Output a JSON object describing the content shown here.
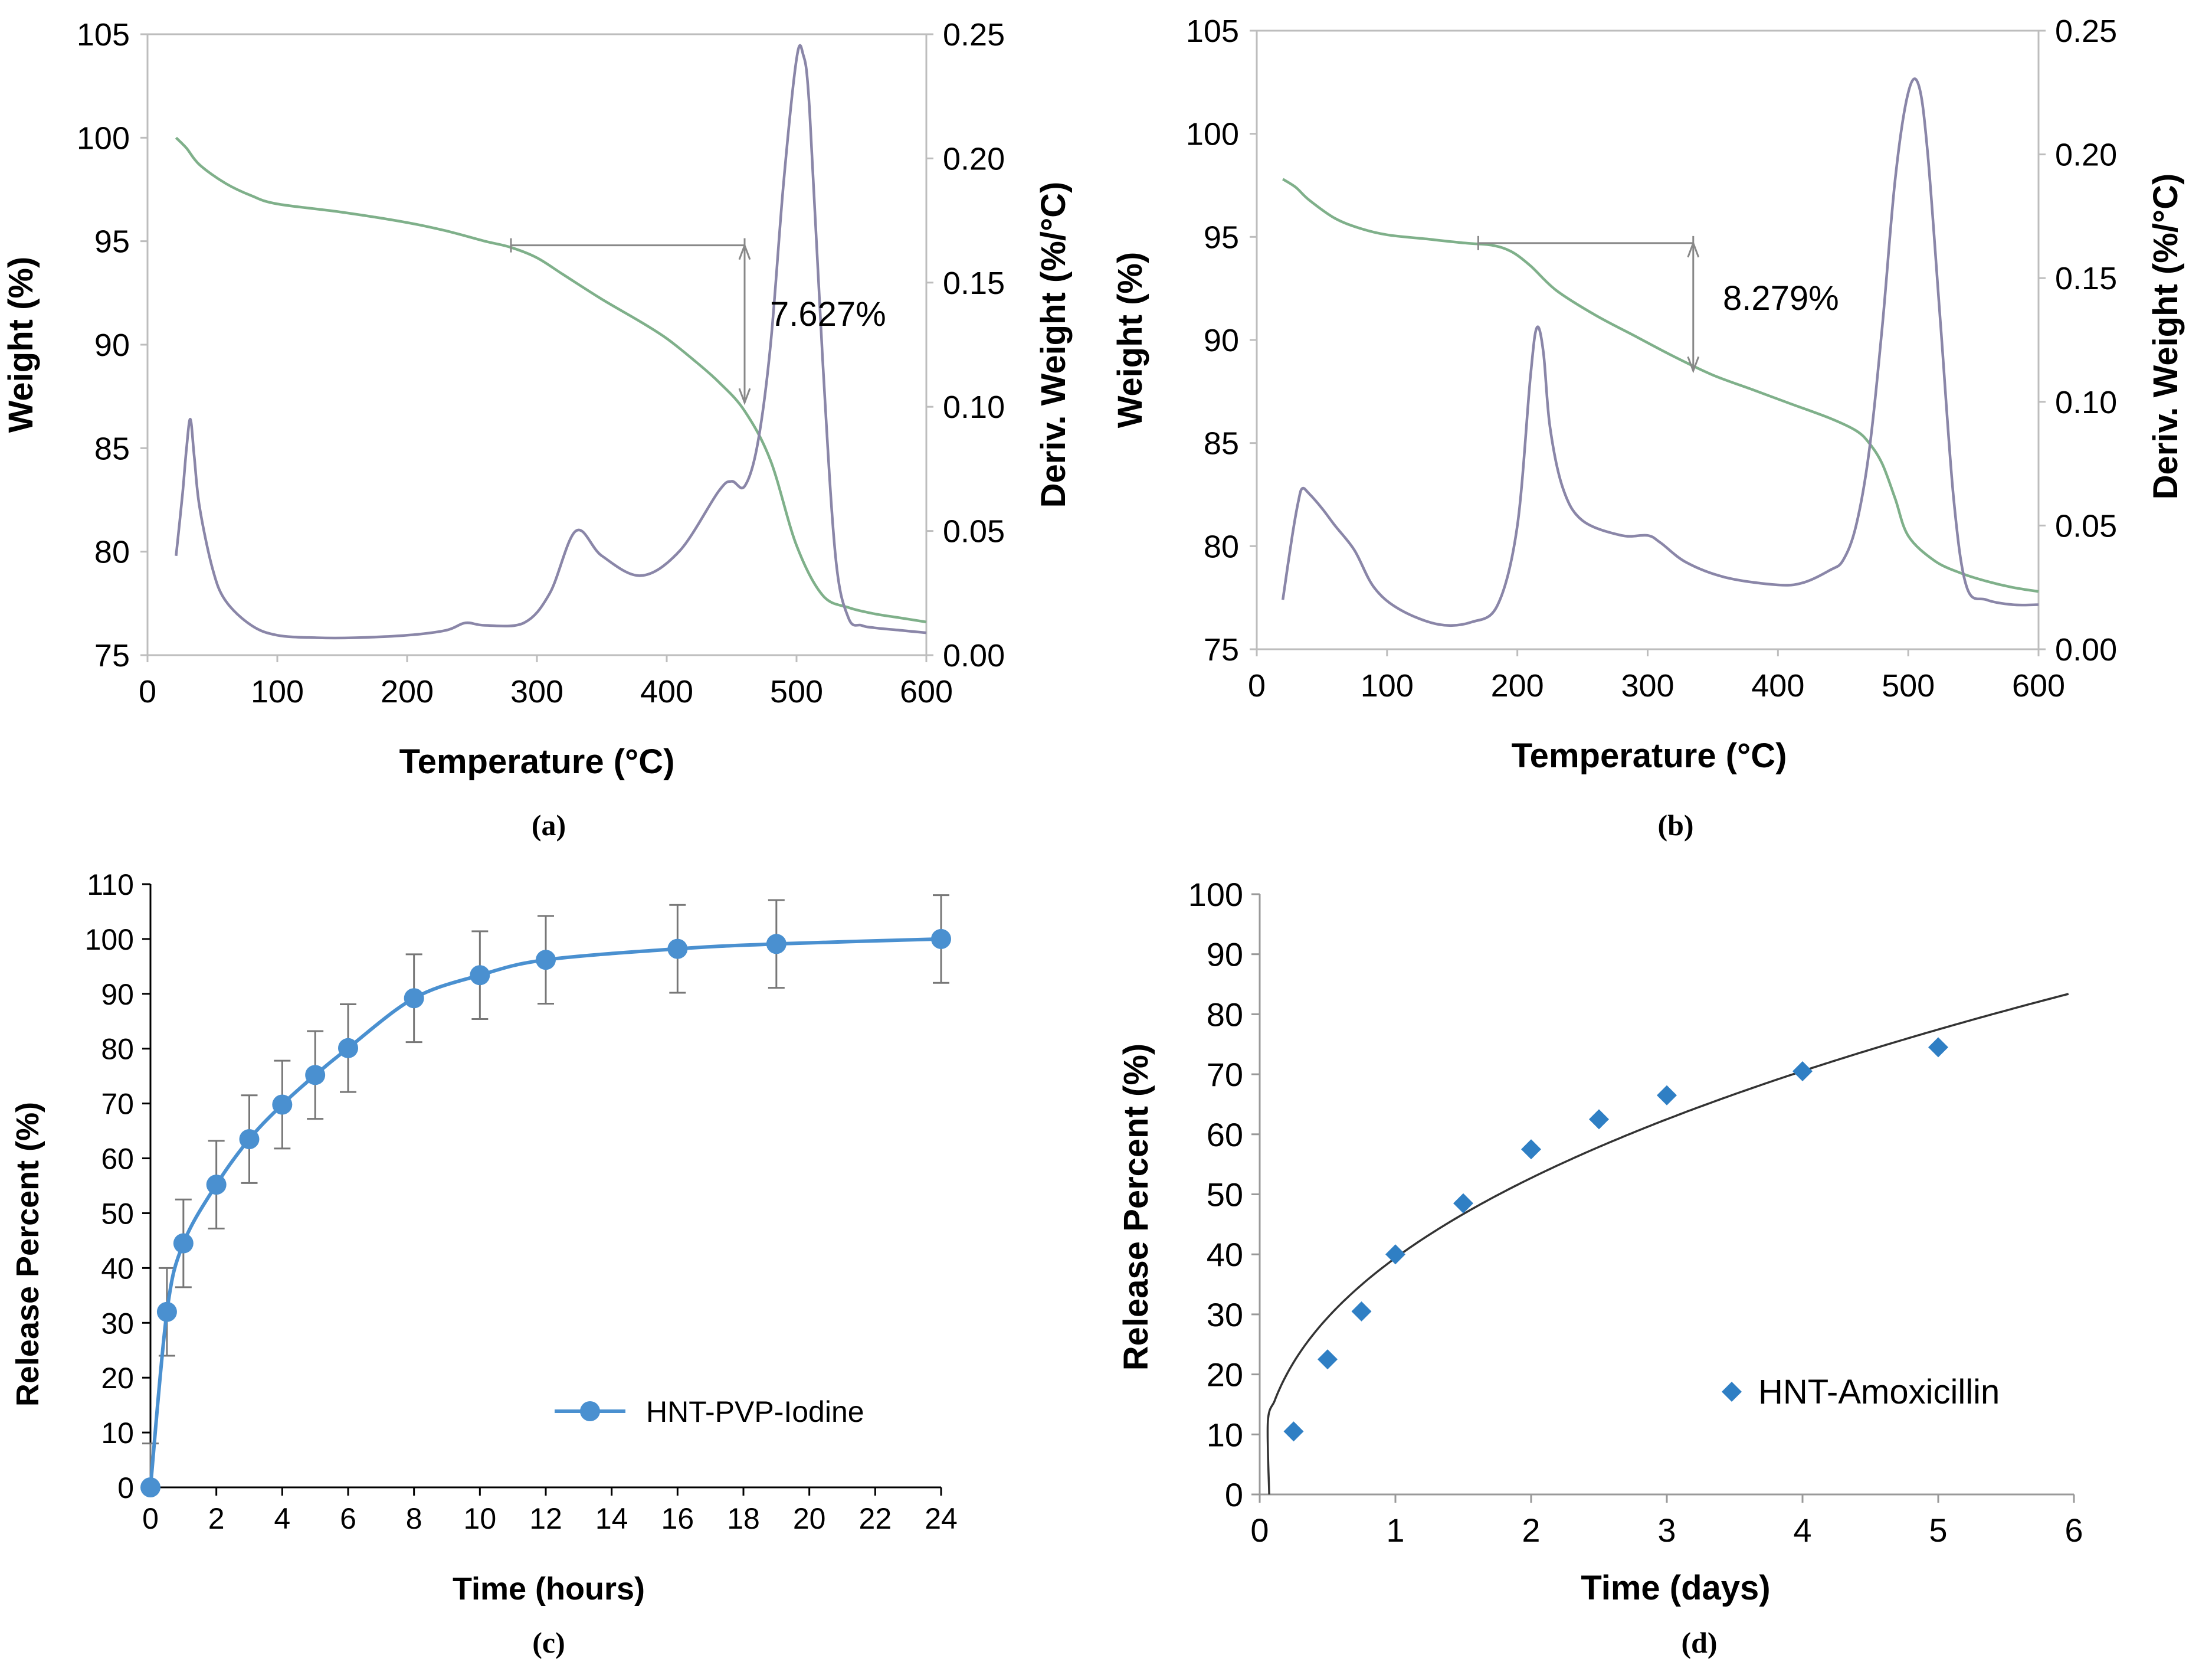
{
  "chart_data": [
    {
      "id": "a",
      "type": "line",
      "panel_label": "(a)",
      "xlabel": "Temperature (°C)",
      "ylabel": "Weight (%)",
      "y2label": "Deriv. Weight (%/°C)",
      "xlim": [
        0,
        600
      ],
      "ylim": [
        75,
        105
      ],
      "y2lim": [
        0,
        0.25
      ],
      "x_ticks": [
        "0",
        "100",
        "200",
        "300",
        "400",
        "500",
        "600"
      ],
      "y_ticks": [
        "75",
        "80",
        "85",
        "90",
        "95",
        "100",
        "105"
      ],
      "y2_ticks": [
        "0.00",
        "0.05",
        "0.10",
        "0.15",
        "0.20",
        "0.25"
      ],
      "annotation": {
        "text": "7.627%",
        "x_from": 280,
        "x_arrow": 460,
        "y_top": 94.8,
        "y_bottom": 87.2
      },
      "series": [
        {
          "name": "Weight",
          "axis": "left",
          "color": "#7fb08a",
          "x": [
            22,
            30,
            40,
            60,
            80,
            100,
            150,
            200,
            230,
            260,
            280,
            300,
            320,
            350,
            380,
            400,
            420,
            440,
            460,
            480,
            500,
            520,
            540,
            560,
            580,
            600
          ],
          "y": [
            100.0,
            99.5,
            98.7,
            97.8,
            97.2,
            96.8,
            96.4,
            95.9,
            95.5,
            95.0,
            94.7,
            94.2,
            93.4,
            92.2,
            91.1,
            90.3,
            89.3,
            88.2,
            86.8,
            84.4,
            80.3,
            77.9,
            77.3,
            77.0,
            76.8,
            76.6
          ]
        },
        {
          "name": "Deriv. Weight",
          "axis": "right",
          "color": "#8a86a8",
          "x": [
            22,
            27,
            30,
            33,
            36,
            40,
            50,
            60,
            80,
            100,
            130,
            160,
            200,
            230,
            245,
            260,
            290,
            310,
            330,
            350,
            380,
            410,
            440,
            450,
            460,
            470,
            480,
            490,
            500,
            505,
            510,
            520,
            530,
            540,
            550,
            560,
            580,
            600
          ],
          "y": [
            0.04,
            0.065,
            0.083,
            0.095,
            0.08,
            0.06,
            0.035,
            0.022,
            0.012,
            0.008,
            0.007,
            0.007,
            0.008,
            0.01,
            0.013,
            0.012,
            0.013,
            0.025,
            0.05,
            0.04,
            0.032,
            0.042,
            0.066,
            0.07,
            0.068,
            0.085,
            0.125,
            0.19,
            0.24,
            0.242,
            0.22,
            0.12,
            0.04,
            0.015,
            0.012,
            0.011,
            0.01,
            0.009
          ]
        }
      ]
    },
    {
      "id": "b",
      "type": "line",
      "panel_label": "(b)",
      "xlabel": "Temperature (°C)",
      "ylabel": "Weight (%)",
      "y2label": "Deriv. Weight (%/°C)",
      "xlim": [
        0,
        600
      ],
      "ylim": [
        75,
        105
      ],
      "y2lim": [
        0,
        0.25
      ],
      "x_ticks": [
        "0",
        "100",
        "200",
        "300",
        "400",
        "500",
        "600"
      ],
      "y_ticks": [
        "75",
        "80",
        "85",
        "90",
        "95",
        "100",
        "105"
      ],
      "y2_ticks": [
        "0.00",
        "0.05",
        "0.10",
        "0.15",
        "0.20",
        "0.25"
      ],
      "annotation": {
        "text": "8.279%",
        "x_from": 170,
        "x_arrow": 335,
        "y_top": 94.7,
        "y_bottom": 88.5
      },
      "series": [
        {
          "name": "Weight",
          "axis": "left",
          "color": "#7fb08a",
          "x": [
            20,
            30,
            40,
            60,
            80,
            100,
            130,
            160,
            180,
            195,
            210,
            230,
            260,
            290,
            320,
            350,
            380,
            410,
            440,
            460,
            470,
            480,
            490,
            500,
            520,
            540,
            560,
            580,
            600
          ],
          "y": [
            97.8,
            97.4,
            96.8,
            95.9,
            95.4,
            95.1,
            94.9,
            94.7,
            94.6,
            94.3,
            93.6,
            92.4,
            91.2,
            90.2,
            89.2,
            88.3,
            87.6,
            86.9,
            86.2,
            85.6,
            85.0,
            84.0,
            82.3,
            80.5,
            79.3,
            78.7,
            78.3,
            78.0,
            77.8
          ]
        },
        {
          "name": "Deriv. Weight",
          "axis": "right",
          "color": "#8a86a8",
          "x": [
            20,
            27,
            32,
            35,
            40,
            50,
            60,
            75,
            90,
            110,
            140,
            165,
            185,
            200,
            210,
            215,
            220,
            225,
            235,
            250,
            280,
            300,
            310,
            330,
            360,
            400,
            420,
            440,
            450,
            460,
            470,
            480,
            490,
            500,
            508,
            515,
            525,
            535,
            545,
            560,
            580,
            600
          ],
          "y": [
            0.02,
            0.045,
            0.06,
            0.065,
            0.063,
            0.057,
            0.05,
            0.04,
            0.025,
            0.016,
            0.01,
            0.011,
            0.018,
            0.05,
            0.11,
            0.13,
            0.12,
            0.09,
            0.065,
            0.052,
            0.046,
            0.046,
            0.043,
            0.035,
            0.029,
            0.026,
            0.027,
            0.032,
            0.036,
            0.05,
            0.08,
            0.13,
            0.19,
            0.225,
            0.228,
            0.2,
            0.13,
            0.06,
            0.025,
            0.02,
            0.018,
            0.018
          ]
        }
      ]
    },
    {
      "id": "c",
      "type": "line",
      "panel_label": "(c)",
      "xlabel": "Time (hours)",
      "ylabel": "Release Percent (%)",
      "xlim": [
        0,
        24
      ],
      "ylim": [
        0,
        110
      ],
      "x_ticks": [
        "0",
        "2",
        "4",
        "6",
        "8",
        "10",
        "12",
        "14",
        "16",
        "18",
        "20",
        "22",
        "24"
      ],
      "y_ticks": [
        "0",
        "10",
        "20",
        "30",
        "40",
        "50",
        "60",
        "70",
        "80",
        "90",
        "100",
        "110"
      ],
      "legend": {
        "label": "HNT-PVP-Iodine",
        "placement": "bottom-right"
      },
      "series": [
        {
          "name": "HNT-PVP-Iodine",
          "color": "#4a90d0",
          "x": [
            0,
            0.5,
            1,
            2,
            3,
            4,
            5,
            6,
            8,
            10,
            12,
            16,
            19,
            24
          ],
          "y": [
            0,
            32,
            44.5,
            55.2,
            63.5,
            69.8,
            75.2,
            80.1,
            89.2,
            93.4,
            96.2,
            98.2,
            99.1,
            100
          ],
          "error": [
            8,
            8,
            8,
            8,
            8,
            8,
            8,
            8,
            8,
            8,
            8,
            8,
            8,
            8
          ]
        }
      ]
    },
    {
      "id": "d",
      "type": "scatter",
      "panel_label": "(d)",
      "xlabel": "Time (days)",
      "ylabel": "Release Percent (%)",
      "xlim": [
        0,
        6
      ],
      "ylim": [
        0,
        100
      ],
      "x_ticks": [
        "0",
        "1",
        "2",
        "3",
        "4",
        "5",
        "6"
      ],
      "y_ticks": [
        "0",
        "10",
        "20",
        "30",
        "40",
        "50",
        "60",
        "70",
        "80",
        "90",
        "100"
      ],
      "legend": {
        "label": "HNT-Amoxicillin",
        "placement": "bottom-right"
      },
      "series": [
        {
          "name": "HNT-Amoxicillin",
          "color": "#2f7fc4",
          "x": [
            0.25,
            0.5,
            0.75,
            1,
            1.5,
            2,
            2.5,
            3,
            4,
            5
          ],
          "y": [
            10.5,
            22.5,
            30.5,
            40,
            48.5,
            57.5,
            62.5,
            66.5,
            70.5,
            74.5
          ]
        }
      ],
      "trendline": {
        "type": "power",
        "coef": 39.4,
        "exp": 0.42,
        "color": "#333333"
      }
    }
  ]
}
